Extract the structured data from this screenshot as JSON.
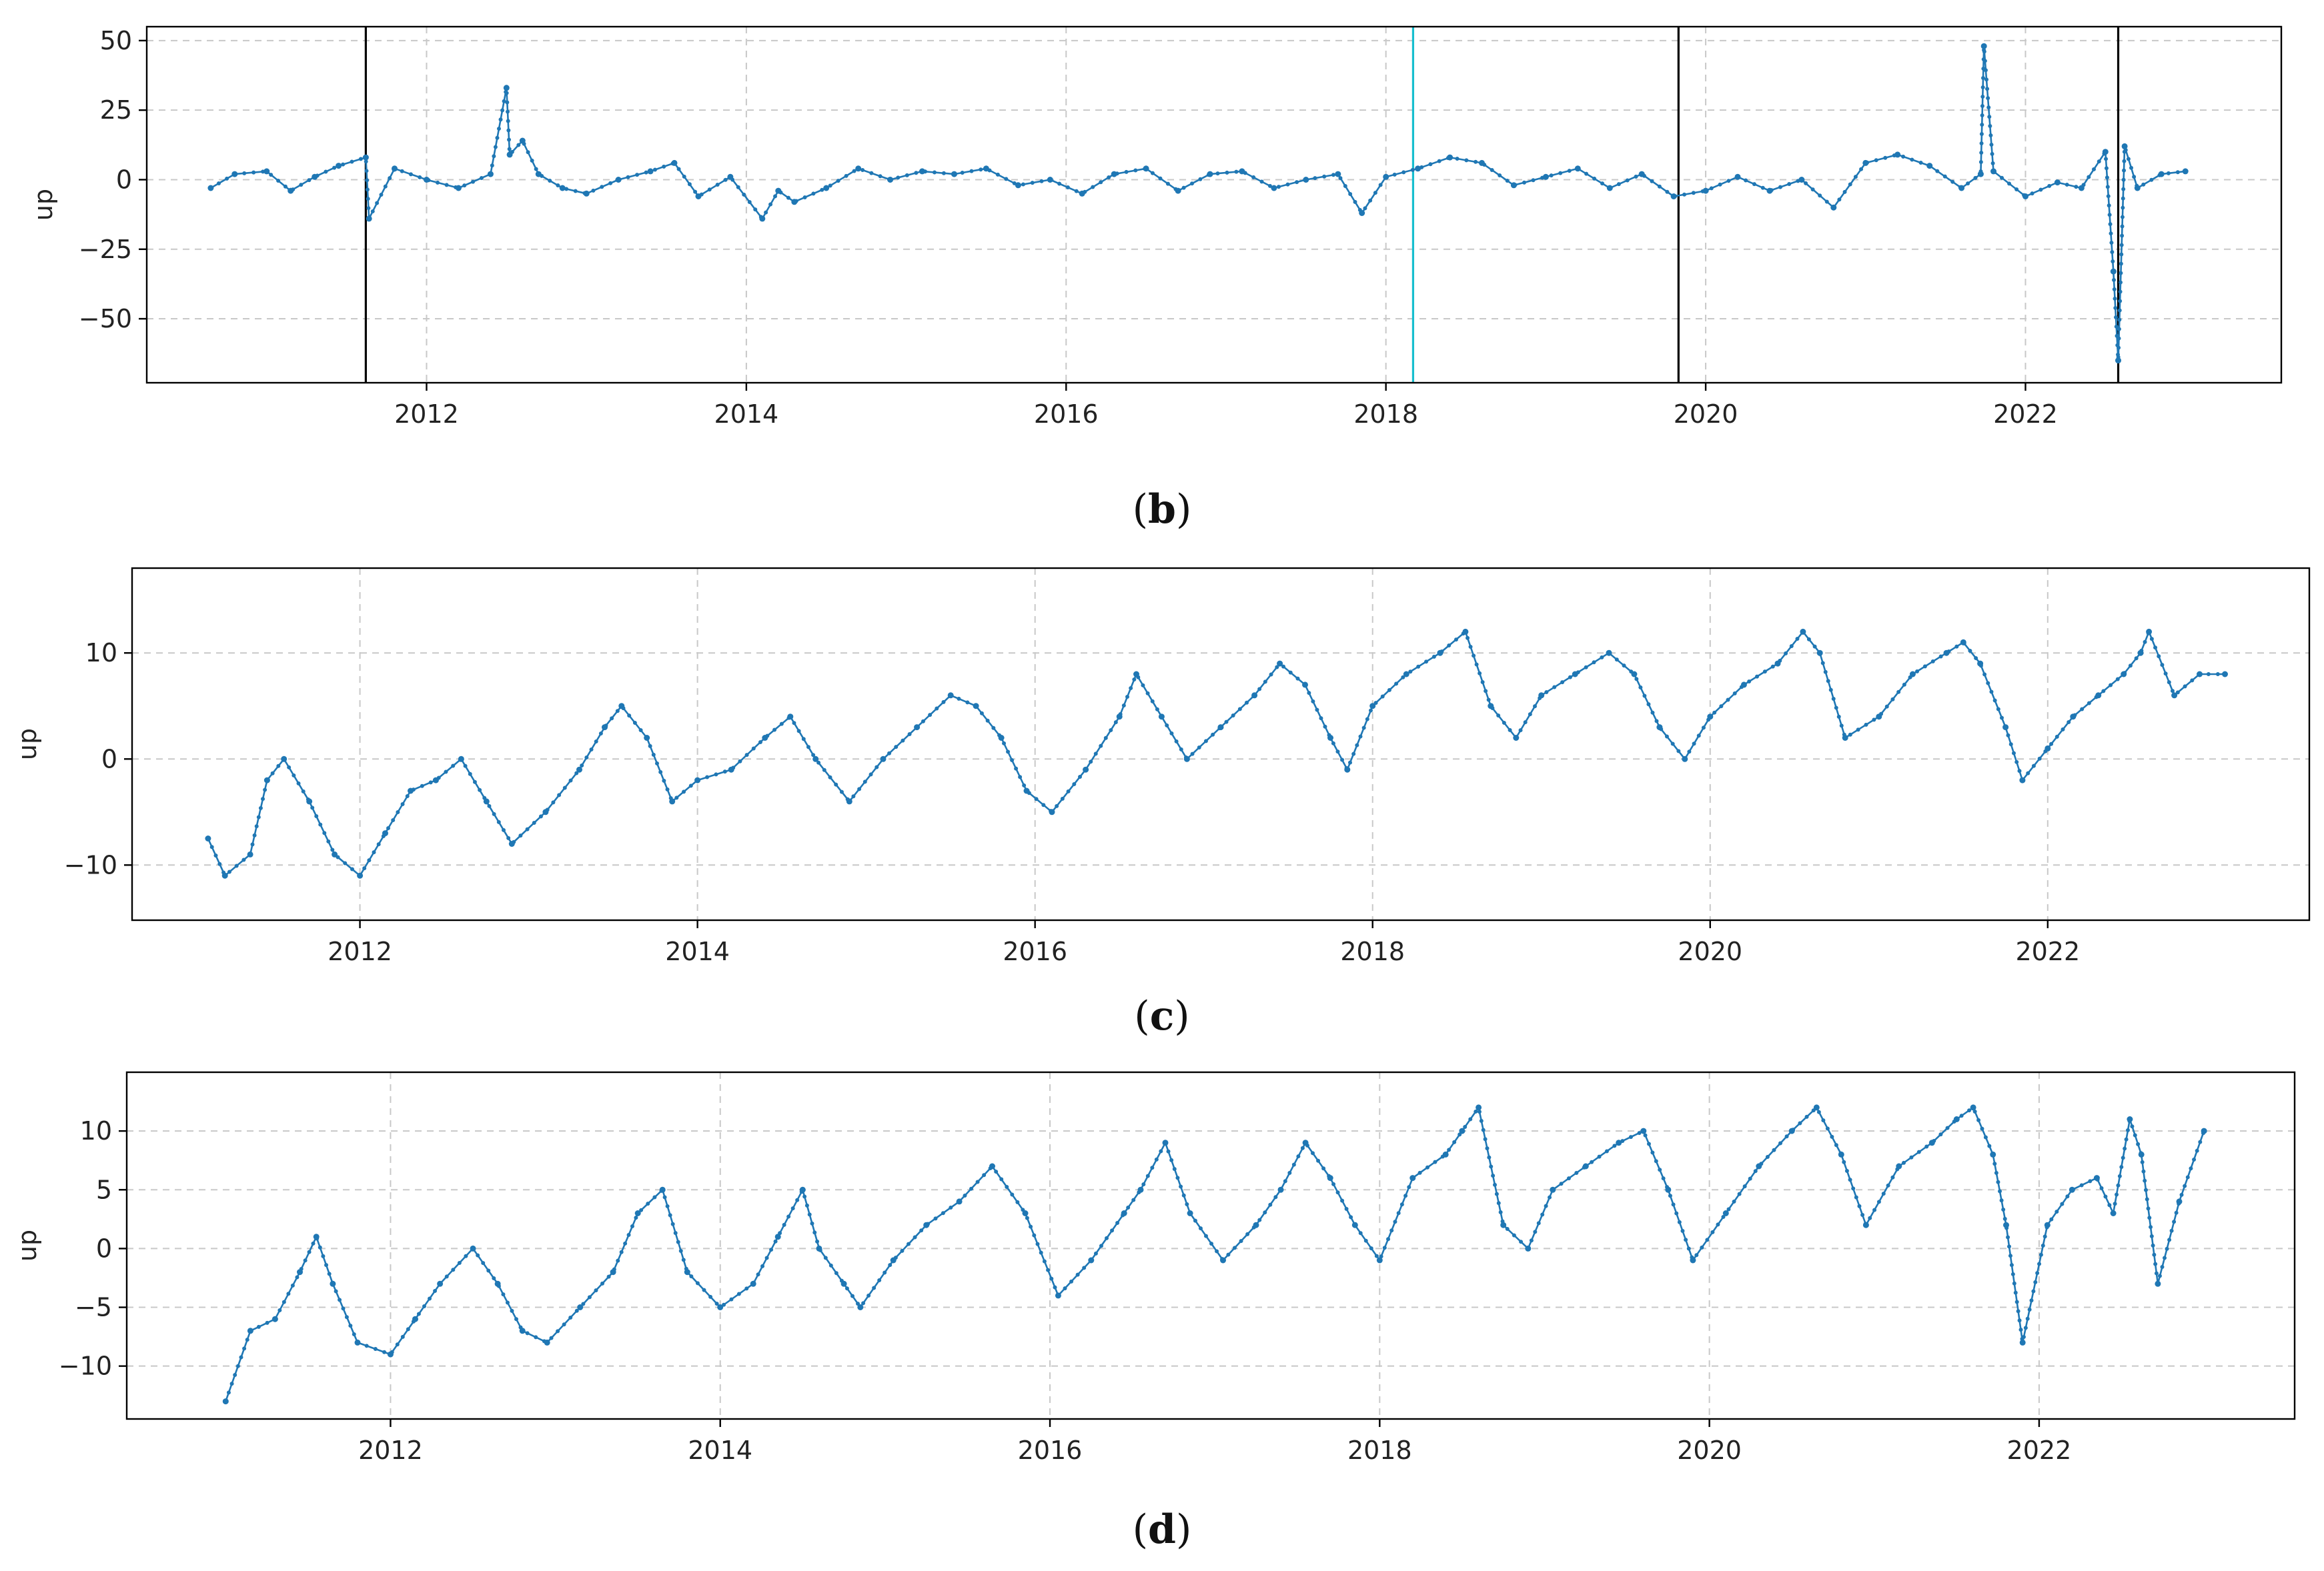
{
  "figure": {
    "colors": {
      "series": "#1f77b4",
      "grid": "#c8c8c8",
      "event_line": "#000000",
      "highlight_line": "#17becf"
    }
  },
  "chart_data": [
    {
      "id": "b",
      "type": "line",
      "panel_label": "(b)",
      "panel_letter": "b",
      "title": "",
      "xlabel": "",
      "ylabel": "up",
      "xlim": [
        2010.25,
        2023.6
      ],
      "ylim": [
        -73,
        55
      ],
      "xticks": [
        2012,
        2014,
        2016,
        2018,
        2020,
        2022
      ],
      "xtick_labels": [
        "2012",
        "2014",
        "2016",
        "2018",
        "2020",
        "2022"
      ],
      "yticks": [
        50,
        25,
        0,
        -25,
        -50
      ],
      "ytick_labels": [
        "50",
        "25",
        "0",
        "−25",
        "−50"
      ],
      "grid": true,
      "series_name": "up",
      "event_lines": [
        {
          "x": 2011.62,
          "color": "#000000"
        },
        {
          "x": 2018.17,
          "color": "#17becf"
        },
        {
          "x": 2019.83,
          "color": "#000000"
        },
        {
          "x": 2022.58,
          "color": "#000000"
        }
      ],
      "series": [
        {
          "name": "up",
          "x": [
            2010.65,
            2010.8,
            2011.0,
            2011.15,
            2011.3,
            2011.45,
            2011.62,
            2011.64,
            2011.8,
            2012.0,
            2012.2,
            2012.4,
            2012.5,
            2012.52,
            2012.6,
            2012.7,
            2012.85,
            2013.0,
            2013.2,
            2013.4,
            2013.55,
            2013.7,
            2013.9,
            2014.1,
            2014.2,
            2014.3,
            2014.5,
            2014.7,
            2014.9,
            2015.1,
            2015.3,
            2015.5,
            2015.7,
            2015.9,
            2016.1,
            2016.3,
            2016.5,
            2016.7,
            2016.9,
            2017.1,
            2017.3,
            2017.5,
            2017.7,
            2017.85,
            2018.0,
            2018.2,
            2018.4,
            2018.6,
            2018.8,
            2019.0,
            2019.2,
            2019.4,
            2019.6,
            2019.8,
            2020.0,
            2020.2,
            2020.4,
            2020.6,
            2020.8,
            2021.0,
            2021.2,
            2021.4,
            2021.6,
            2021.72,
            2021.74,
            2021.8,
            2022.0,
            2022.2,
            2022.35,
            2022.5,
            2022.55,
            2022.58,
            2022.62,
            2022.7,
            2022.85,
            2023.0
          ],
          "values": [
            -3,
            2,
            3,
            -4,
            1,
            5,
            8,
            -14,
            4,
            0,
            -3,
            2,
            33,
            9,
            14,
            2,
            -3,
            -5,
            0,
            3,
            6,
            -6,
            1,
            -14,
            -4,
            -8,
            -3,
            4,
            0,
            3,
            2,
            4,
            -2,
            0,
            -5,
            2,
            4,
            -4,
            2,
            3,
            -3,
            0,
            2,
            -12,
            1,
            4,
            8,
            6,
            -2,
            1,
            4,
            -3,
            2,
            -6,
            -4,
            1,
            -4,
            0,
            -10,
            6,
            9,
            5,
            -3,
            2,
            48,
            3,
            -6,
            -1,
            -3,
            10,
            -33,
            -65,
            12,
            -3,
            2,
            3
          ]
        }
      ]
    },
    {
      "id": "c",
      "type": "line",
      "panel_label": "(c)",
      "panel_letter": "c",
      "title": "",
      "xlabel": "",
      "ylabel": "up",
      "xlim": [
        2010.65,
        2023.55
      ],
      "ylim": [
        -15.2,
        18
      ],
      "xticks": [
        2012,
        2014,
        2016,
        2018,
        2020,
        2022
      ],
      "xtick_labels": [
        "2012",
        "2014",
        "2016",
        "2018",
        "2020",
        "2022"
      ],
      "yticks": [
        10,
        0,
        -10
      ],
      "ytick_labels": [
        "10",
        "0",
        "−10"
      ],
      "grid": true,
      "series_name": "up",
      "series": [
        {
          "name": "up",
          "x": [
            2011.1,
            2011.2,
            2011.35,
            2011.45,
            2011.55,
            2011.7,
            2011.85,
            2012.0,
            2012.15,
            2012.3,
            2012.45,
            2012.6,
            2012.75,
            2012.9,
            2013.1,
            2013.3,
            2013.45,
            2013.55,
            2013.7,
            2013.85,
            2014.0,
            2014.2,
            2014.4,
            2014.55,
            2014.7,
            2014.9,
            2015.1,
            2015.3,
            2015.5,
            2015.65,
            2015.8,
            2015.95,
            2016.1,
            2016.3,
            2016.5,
            2016.6,
            2016.75,
            2016.9,
            2017.1,
            2017.3,
            2017.45,
            2017.6,
            2017.75,
            2017.85,
            2018.0,
            2018.2,
            2018.4,
            2018.55,
            2018.7,
            2018.85,
            2019.0,
            2019.2,
            2019.4,
            2019.55,
            2019.7,
            2019.85,
            2020.0,
            2020.2,
            2020.4,
            2020.55,
            2020.65,
            2020.8,
            2021.0,
            2021.2,
            2021.4,
            2021.5,
            2021.6,
            2021.75,
            2021.85,
            2022.0,
            2022.15,
            2022.3,
            2022.45,
            2022.55,
            2022.6,
            2022.75,
            2022.9,
            2023.05
          ],
          "values": [
            -7.5,
            -11,
            -9,
            -2,
            0,
            -4,
            -9,
            -11,
            -7,
            -3,
            -2,
            0,
            -4,
            -8,
            -5,
            -1,
            3,
            5,
            2,
            -4,
            -2,
            -1,
            2,
            4,
            0,
            -4,
            0,
            3,
            6,
            5,
            2,
            -3,
            -5,
            -1,
            4,
            8,
            4,
            0,
            3,
            6,
            9,
            7,
            2,
            -1,
            5,
            8,
            10,
            12,
            5,
            2,
            6,
            8,
            10,
            8,
            3,
            0,
            4,
            7,
            9,
            12,
            10,
            2,
            4,
            8,
            10,
            11,
            9,
            3,
            -2,
            1,
            4,
            6,
            8,
            10,
            12,
            6,
            8,
            8
          ]
        }
      ]
    },
    {
      "id": "d",
      "type": "line",
      "panel_label": "(d)",
      "panel_letter": "d",
      "title": "",
      "xlabel": "",
      "ylabel": "up",
      "xlim": [
        2010.4,
        2023.55
      ],
      "ylim": [
        -14.5,
        15
      ],
      "xticks": [
        2012,
        2014,
        2016,
        2018,
        2020,
        2022
      ],
      "xtick_labels": [
        "2012",
        "2014",
        "2016",
        "2018",
        "2020",
        "2022"
      ],
      "yticks": [
        10,
        5,
        0,
        -5,
        -10
      ],
      "ytick_labels": [
        "10",
        "5",
        "0",
        "−5",
        "−10"
      ],
      "grid": true,
      "series_name": "up",
      "series": [
        {
          "name": "up",
          "x": [
            2011.0,
            2011.15,
            2011.3,
            2011.45,
            2011.55,
            2011.65,
            2011.8,
            2012.0,
            2012.15,
            2012.3,
            2012.5,
            2012.65,
            2012.8,
            2012.95,
            2013.15,
            2013.35,
            2013.5,
            2013.65,
            2013.8,
            2014.0,
            2014.2,
            2014.35,
            2014.5,
            2014.6,
            2014.75,
            2014.85,
            2015.05,
            2015.25,
            2015.45,
            2015.65,
            2015.85,
            2016.05,
            2016.25,
            2016.45,
            2016.55,
            2016.7,
            2016.85,
            2017.05,
            2017.25,
            2017.4,
            2017.55,
            2017.7,
            2017.85,
            2018.0,
            2018.2,
            2018.4,
            2018.5,
            2018.6,
            2018.75,
            2018.9,
            2019.05,
            2019.25,
            2019.45,
            2019.6,
            2019.75,
            2019.9,
            2020.1,
            2020.3,
            2020.5,
            2020.65,
            2020.8,
            2020.95,
            2021.15,
            2021.35,
            2021.5,
            2021.6,
            2021.72,
            2021.8,
            2021.9,
            2022.05,
            2022.2,
            2022.35,
            2022.45,
            2022.55,
            2022.62,
            2022.72,
            2022.85,
            2023.0
          ],
          "values": [
            -13,
            -7,
            -6,
            -2,
            1,
            -3,
            -8,
            -9,
            -6,
            -3,
            0,
            -3,
            -7,
            -8,
            -5,
            -2,
            3,
            5,
            -2,
            -5,
            -3,
            1,
            5,
            0,
            -3,
            -5,
            -1,
            2,
            4,
            7,
            3,
            -4,
            -1,
            3,
            5,
            9,
            3,
            -1,
            2,
            5,
            9,
            6,
            2,
            -1,
            6,
            8,
            10,
            12,
            2,
            0,
            5,
            7,
            9,
            10,
            5,
            -1,
            3,
            7,
            10,
            12,
            8,
            2,
            7,
            9,
            11,
            12,
            8,
            2,
            -8,
            2,
            5,
            6,
            3,
            11,
            8,
            -3,
            4,
            10
          ]
        }
      ]
    }
  ]
}
